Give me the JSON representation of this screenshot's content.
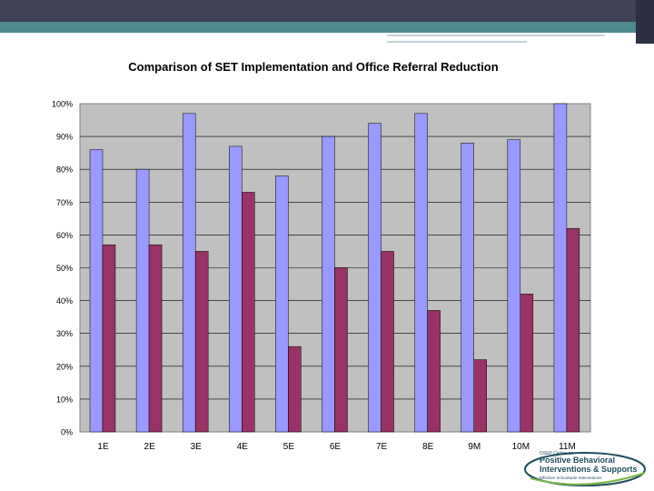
{
  "chart_data": {
    "type": "bar",
    "title": "Comparison of SET Implementation and Office Referral Reduction",
    "categories": [
      "1E",
      "2E",
      "3E",
      "4E",
      "5E",
      "6E",
      "7E",
      "8E",
      "9M",
      "10M",
      "11M"
    ],
    "series": [
      {
        "values": [
          86,
          80,
          97,
          87,
          78,
          90,
          94,
          97,
          88,
          89,
          100
        ],
        "color": "#9999ff"
      },
      {
        "values": [
          57,
          57,
          55,
          73,
          26,
          50,
          55,
          37,
          22,
          42,
          62
        ],
        "color": "#993366"
      }
    ],
    "ylim": [
      0,
      100
    ],
    "yticks": [
      "0%",
      "10%",
      "20%",
      "30%",
      "40%",
      "50%",
      "60%",
      "70%",
      "80%",
      "90%",
      "100%"
    ],
    "plot_background": "#c0c0c0",
    "grid": true,
    "legend": "none"
  },
  "logo": {
    "line1": "OSEP Center on",
    "line2": "Positive Behavioral",
    "line3": "Interventions & Supports",
    "line4": "Effective Schoolwide Interventions",
    "color": "#1f4f5e",
    "accent": "#7ab648"
  }
}
